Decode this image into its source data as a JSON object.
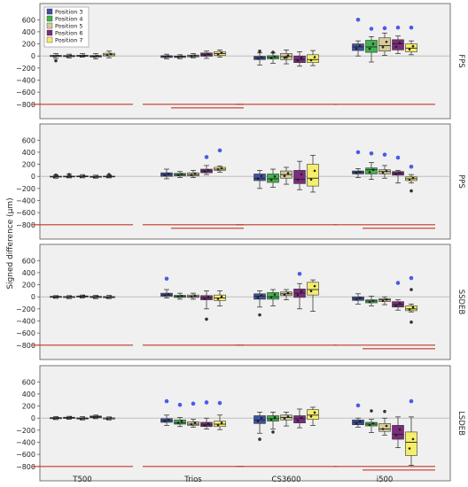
{
  "chart_data": {
    "type": "box",
    "ylabel": "Signed difference (µm)",
    "categories": [
      "T500",
      "Trios",
      "CS3600",
      "i500"
    ],
    "ylim": [
      -950,
      780
    ],
    "yticks": [
      -800,
      -600,
      -400,
      -200,
      0,
      200,
      400,
      600
    ],
    "grid": false,
    "legend_position": "top-left (first panel)",
    "series": [
      {
        "name": "Position 3",
        "color": "#3d52a8"
      },
      {
        "name": "Position 4",
        "color": "#3fb44a"
      },
      {
        "name": "Position 5",
        "color": "#d7cc96"
      },
      {
        "name": "Position 6",
        "color": "#7d2a7f"
      },
      {
        "name": "Position 7",
        "color": "#f5ee6a"
      }
    ],
    "threshold_line_value": -800,
    "threshold_line_color": "#c0392b",
    "panels": [
      {
        "label": "FPS",
        "boxes": [
          [
            [
              -40,
              -10,
              0,
              10,
              40
            ],
            [
              -35,
              -12,
              -3,
              8,
              30
            ],
            [
              -20,
              -8,
              2,
              12,
              40
            ],
            [
              -50,
              -18,
              -5,
              8,
              40
            ],
            [
              -30,
              0,
              20,
              45,
              80
            ]
          ],
          [
            [
              -50,
              -25,
              -10,
              5,
              30
            ],
            [
              -45,
              -25,
              -10,
              0,
              20
            ],
            [
              -30,
              -15,
              0,
              15,
              40
            ],
            [
              -40,
              -5,
              20,
              50,
              80
            ],
            [
              -20,
              10,
              40,
              70,
              100
            ]
          ],
          [
            [
              -150,
              -60,
              -30,
              -5,
              50
            ],
            [
              -120,
              -50,
              -20,
              5,
              50
            ],
            [
              -130,
              -60,
              -10,
              40,
              100
            ],
            [
              -170,
              -110,
              -60,
              0,
              70
            ],
            [
              -160,
              -110,
              -60,
              20,
              90
            ]
          ],
          [
            [
              0,
              90,
              150,
              200,
              250
            ],
            [
              -100,
              60,
              150,
              260,
              320
            ],
            [
              10,
              80,
              170,
              300,
              380
            ],
            [
              40,
              100,
              200,
              270,
              330
            ],
            [
              20,
              70,
              130,
              200,
              250
            ]
          ]
        ],
        "outliers": [
          [
            [
              -80
            ],
            [],
            [],
            [],
            []
          ],
          [
            [],
            [],
            [],
            [],
            []
          ],
          [
            [
              80
            ],
            [
              60
            ],
            [
              -20
            ],
            [],
            []
          ],
          [
            [
              600
            ],
            [
              450
            ],
            [
              460
            ],
            [
              470
            ],
            [
              470
            ]
          ]
        ]
      },
      {
        "label": "PPS",
        "boxes": [
          [
            [
              -30,
              -12,
              -5,
              3,
              25
            ],
            [
              -25,
              -10,
              -2,
              5,
              40
            ],
            [
              -25,
              -8,
              0,
              8,
              30
            ],
            [
              -30,
              -15,
              -8,
              2,
              20
            ],
            [
              -25,
              -10,
              -3,
              5,
              25
            ]
          ],
          [
            [
              -40,
              0,
              30,
              60,
              120
            ],
            [
              -20,
              10,
              30,
              50,
              80
            ],
            [
              -20,
              10,
              30,
              60,
              100
            ],
            [
              30,
              60,
              90,
              120,
              180
            ],
            [
              70,
              100,
              120,
              150,
              170
            ]
          ],
          [
            [
              -200,
              -70,
              -30,
              40,
              100
            ],
            [
              -180,
              -100,
              -40,
              40,
              120
            ],
            [
              -130,
              -30,
              30,
              90,
              150
            ],
            [
              -220,
              -120,
              -50,
              100,
              250
            ],
            [
              -260,
              -160,
              -30,
              200,
              350
            ]
          ],
          [
            [
              -20,
              40,
              70,
              90,
              130
            ],
            [
              -50,
              40,
              110,
              140,
              230
            ],
            [
              -30,
              40,
              80,
              110,
              180
            ],
            [
              -110,
              20,
              50,
              80,
              100
            ],
            [
              -110,
              -70,
              -40,
              -10,
              30
            ]
          ]
        ],
        "outliers": [
          [
            [
              20
            ],
            [
              30
            ],
            [],
            [],
            [
              30
            ]
          ],
          [
            [],
            [],
            [],
            [
              320
            ],
            [
              430
            ]
          ],
          [
            [],
            [],
            [],
            [],
            []
          ],
          [
            [
              400
            ],
            [
              380
            ],
            [
              360
            ],
            [
              310
            ],
            [
              160,
              -240
            ]
          ]
        ]
      },
      {
        "label": "SSDEB",
        "boxes": [
          [
            [
              -25,
              -10,
              0,
              8,
              20
            ],
            [
              -30,
              -12,
              -2,
              5,
              20
            ],
            [
              -20,
              -5,
              5,
              15,
              30
            ],
            [
              -30,
              -12,
              -3,
              8,
              25
            ],
            [
              -30,
              -15,
              -5,
              5,
              25
            ]
          ],
          [
            [
              -20,
              10,
              30,
              60,
              120
            ],
            [
              -40,
              -10,
              5,
              25,
              60
            ],
            [
              -40,
              -10,
              5,
              30,
              60
            ],
            [
              -200,
              -50,
              -20,
              20,
              100
            ],
            [
              -150,
              -60,
              -20,
              30,
              100
            ]
          ],
          [
            [
              -170,
              -40,
              10,
              50,
              100
            ],
            [
              -150,
              -40,
              0,
              70,
              120
            ],
            [
              -50,
              20,
              50,
              80,
              120
            ],
            [
              -200,
              -10,
              60,
              130,
              220
            ],
            [
              -240,
              30,
              120,
              240,
              280
            ]
          ],
          [
            [
              -120,
              -60,
              -30,
              0,
              50
            ],
            [
              -150,
              -100,
              -70,
              -50,
              10
            ],
            [
              -130,
              -80,
              -50,
              -30,
              0
            ],
            [
              -220,
              -170,
              -130,
              -80,
              -50
            ],
            [
              -250,
              -230,
              -200,
              -150,
              -120
            ]
          ]
        ],
        "outliers": [
          [
            [],
            [],
            [],
            [],
            []
          ],
          [
            [
              300
            ],
            [],
            [],
            [
              -370
            ],
            []
          ],
          [
            [
              -300
            ],
            [],
            [],
            [
              380
            ],
            []
          ],
          [
            [],
            [],
            [],
            [
              230
            ],
            [
              310,
              -420,
              120
            ]
          ]
        ]
      },
      {
        "label": "LSDEB",
        "boxes": [
          [
            [
              -25,
              -10,
              0,
              10,
              25
            ],
            [
              -20,
              -5,
              5,
              15,
              30
            ],
            [
              -30,
              -15,
              -5,
              5,
              25
            ],
            [
              -10,
              5,
              20,
              35,
              50
            ],
            [
              -30,
              -15,
              -10,
              5,
              20
            ]
          ],
          [
            [
              -120,
              -70,
              -40,
              -10,
              50
            ],
            [
              -140,
              -100,
              -80,
              -30,
              10
            ],
            [
              -150,
              -120,
              -100,
              -60,
              -20
            ],
            [
              -180,
              -140,
              -110,
              -70,
              0
            ],
            [
              -190,
              -140,
              -100,
              -50,
              50
            ]
          ],
          [
            [
              -250,
              -90,
              -30,
              40,
              100
            ],
            [
              -180,
              -50,
              -10,
              40,
              100
            ],
            [
              -130,
              -30,
              10,
              50,
              100
            ],
            [
              -160,
              -80,
              -10,
              40,
              150
            ],
            [
              -120,
              -20,
              50,
              140,
              180
            ]
          ],
          [
            [
              -150,
              -110,
              -70,
              -30,
              0
            ],
            [
              -240,
              -130,
              -100,
              -70,
              -20
            ],
            [
              -280,
              -220,
              -180,
              -90,
              0
            ],
            [
              -490,
              -350,
              -270,
              -120,
              20
            ],
            [
              -780,
              -620,
              -400,
              -230,
              20
            ]
          ]
        ],
        "outliers": [
          [
            [],
            [],
            [],
            [],
            []
          ],
          [
            [
              280
            ],
            [
              220
            ],
            [
              240
            ],
            [
              260
            ],
            [
              250
            ]
          ],
          [
            [
              -350
            ],
            [
              -230
            ],
            [],
            [],
            []
          ],
          [
            [
              210
            ],
            [
              120
            ],
            [
              110
            ],
            [],
            [
              280
            ]
          ]
        ]
      }
    ],
    "threshold_segments": [
      [
        [
          0,
          1
        ],
        [
          0,
          1
        ],
        [
          0,
          1
        ],
        [
          0,
          1
        ]
      ],
      [
        [
          0,
          1
        ],
        [
          0,
          1
        ],
        [
          0,
          1
        ],
        [
          0,
          1
        ]
      ],
      [
        [
          0,
          1
        ],
        [
          0,
          1
        ],
        [
          0,
          1
        ],
        [
          0,
          1
        ]
      ],
      [
        [
          0,
          1
        ],
        [
          0,
          1
        ],
        [
          0,
          1
        ],
        [
          0,
          1
        ]
      ]
    ]
  }
}
